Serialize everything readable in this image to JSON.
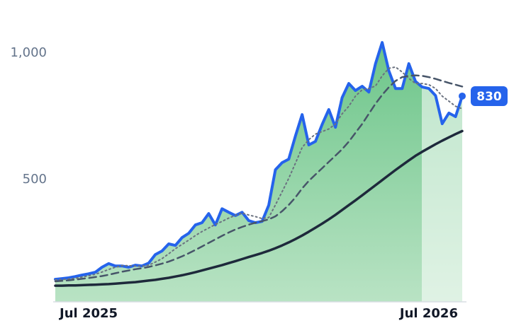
{
  "chart_data": {
    "type": "line",
    "categories": [
      null,
      null,
      null,
      null,
      null,
      "Jul 2025",
      null,
      null,
      null,
      null,
      null,
      null,
      null,
      null,
      null,
      null,
      null,
      null,
      null,
      null,
      null,
      null,
      null,
      null,
      null,
      null,
      null,
      null,
      null,
      null,
      null,
      null,
      null,
      null,
      null,
      null,
      null,
      null,
      null,
      null,
      null,
      null,
      null,
      null,
      null,
      null,
      null,
      null,
      null,
      null,
      null,
      null,
      null,
      null,
      null,
      null,
      "Jul 2026",
      null,
      null,
      null,
      null,
      null
    ],
    "series": [
      {
        "color": "#2563eb",
        "width": 4,
        "dash": "solid",
        "area": true,
        "values": [
          106,
          109,
          112,
          117,
          123,
          128,
          134,
          154,
          168,
          159,
          159,
          154,
          162,
          159,
          170,
          204,
          218,
          246,
          240,
          271,
          288,
          321,
          330,
          366,
          321,
          385,
          371,
          358,
          371,
          338,
          330,
          335,
          399,
          539,
          567,
          581,
          673,
          757,
          637,
          651,
          718,
          777,
          707,
          824,
          880,
          852,
          869,
          846,
          958,
          1042,
          930,
          860,
          860,
          958,
          888,
          866,
          860,
          832,
          721,
          763,
          749,
          830
        ]
      },
      {
        "color": "#6b7280",
        "width": 2,
        "dash": "dotted",
        "values": [
          104,
          105,
          107,
          110,
          115,
          120,
          126,
          135,
          145,
          154,
          160,
          160,
          158,
          158,
          162,
          174,
          188,
          207,
          227,
          244,
          261,
          279,
          295,
          309,
          323,
          335,
          348,
          359,
          368,
          360,
          354,
          346,
          350,
          400,
          452,
          505,
          565,
          627,
          658,
          680,
          690,
          700,
          720,
          760,
          790,
          830,
          855,
          860,
          870,
          910,
          940,
          945,
          925,
          900,
          880,
          880,
          875,
          860,
          830,
          810,
          790,
          780
        ]
      },
      {
        "color": "#475569",
        "width": 2.5,
        "dash": "dashed",
        "values": [
          98,
          100,
          102,
          105,
          108,
          111,
          115,
          119,
          124,
          130,
          136,
          141,
          146,
          150,
          155,
          161,
          168,
          176,
          186,
          197,
          209,
          222,
          236,
          250,
          264,
          278,
          291,
          303,
          313,
          322,
          330,
          336,
          343,
          355,
          375,
          400,
          430,
          465,
          495,
          520,
          545,
          570,
          595,
          620,
          650,
          685,
          720,
          760,
          800,
          835,
          865,
          890,
          905,
          910,
          912,
          910,
          905,
          898,
          890,
          882,
          875,
          868
        ]
      },
      {
        "color": "#1e293b",
        "width": 3.5,
        "dash": "solid",
        "values": [
          81,
          81,
          82,
          82,
          83,
          84,
          85,
          86,
          87,
          89,
          91,
          93,
          95,
          98,
          101,
          104,
          108,
          112,
          117,
          122,
          128,
          134,
          141,
          148,
          155,
          162,
          170,
          178,
          186,
          194,
          202,
          210,
          219,
          229,
          240,
          252,
          265,
          279,
          294,
          310,
          326,
          343,
          361,
          380,
          399,
          418,
          438,
          458,
          478,
          498,
          518,
          538,
          557,
          576,
          594,
          610,
          625,
          640,
          654,
          667,
          680,
          692
        ]
      }
    ],
    "ylim": [
      17,
      1100
    ],
    "yticks": [
      500,
      {
        "value": 1000,
        "label": "1,000"
      }
    ],
    "grid": false
  }
}
